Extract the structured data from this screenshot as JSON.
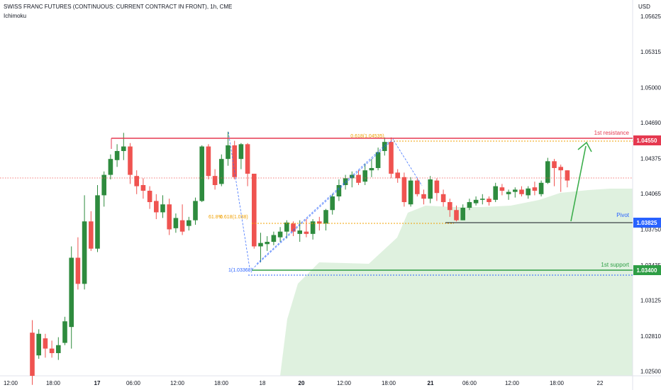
{
  "header": {
    "title": "SWISS FRANC FUTURES (CONTINUOUS: CURRENT CONTRACT IN FRONT), 1h, CME",
    "indicator": "Ichimoku",
    "currency": "USD"
  },
  "colors": {
    "bull": "#2e8b3e",
    "bear": "#ef5350",
    "resistance": "#e53950",
    "pivot": "#2962ff",
    "support": "#2e9e45",
    "fib": "#f0a000",
    "cloud": "#dff1df",
    "arrow": "#3cae4c"
  },
  "chart_data": {
    "type": "candlestick",
    "ylim": [
      1.0246,
      1.0577
    ],
    "y_ticks": [
      "1.05625",
      "1.05315",
      "1.05000",
      "1.04690",
      "1.04375",
      "1.04065",
      "1.03750",
      "1.03435",
      "1.03125",
      "1.02810",
      "1.02500"
    ],
    "x_ticks": [
      "12:00",
      "18:00",
      "17",
      "06:00",
      "12:00",
      "18:00",
      "18",
      "20",
      "12:00",
      "18:00",
      "21",
      "06:00",
      "12:00",
      "18:00",
      "22"
    ],
    "x_ticks_bold": [
      "17",
      "20",
      "21"
    ],
    "candles": [
      [
        1.0284,
        1.0295,
        1.0238,
        1.0246
      ],
      [
        1.0264,
        1.0287,
        1.0261,
        1.0283
      ],
      [
        1.0279,
        1.0283,
        1.0262,
        1.027
      ],
      [
        1.027,
        1.0277,
        1.0262,
        1.0266
      ],
      [
        1.0266,
        1.028,
        1.026,
        1.0273
      ],
      [
        1.0275,
        1.0298,
        1.0273,
        1.0294
      ],
      [
        1.0289,
        1.036,
        1.027,
        1.035
      ],
      [
        1.035,
        1.0368,
        1.0322,
        1.0327
      ],
      [
        1.0327,
        1.0405,
        1.0322,
        1.0382
      ],
      [
        1.0382,
        1.0391,
        1.0356,
        1.0358
      ],
      [
        1.0358,
        1.0414,
        1.0355,
        1.0405
      ],
      [
        1.0405,
        1.0426,
        1.0395,
        1.0423
      ],
      [
        1.0423,
        1.0441,
        1.0419,
        1.0437
      ],
      [
        1.0436,
        1.045,
        1.043,
        1.0444
      ],
      [
        1.0444,
        1.046,
        1.0436,
        1.0448
      ],
      [
        1.0448,
        1.0451,
        1.0415,
        1.0423
      ],
      [
        1.0422,
        1.0427,
        1.0406,
        1.0413
      ],
      [
        1.0414,
        1.042,
        1.0402,
        1.0409
      ],
      [
        1.0409,
        1.0413,
        1.0393,
        1.0399
      ],
      [
        1.04,
        1.0406,
        1.0384,
        1.039
      ],
      [
        1.039,
        1.0405,
        1.0385,
        1.0397
      ],
      [
        1.0397,
        1.0402,
        1.037,
        1.0375
      ],
      [
        1.0376,
        1.0389,
        1.0372,
        1.0385
      ],
      [
        1.0383,
        1.0397,
        1.037,
        1.0373
      ],
      [
        1.0378,
        1.0386,
        1.0374,
        1.0383
      ],
      [
        1.0383,
        1.0403,
        1.0379,
        1.04
      ],
      [
        1.04,
        1.0449,
        1.0399,
        1.0448
      ],
      [
        1.0448,
        1.045,
        1.0419,
        1.0422
      ],
      [
        1.0422,
        1.0428,
        1.041,
        1.0414
      ],
      [
        1.0415,
        1.0441,
        1.0413,
        1.0437
      ],
      [
        1.0437,
        1.0461,
        1.0431,
        1.0449
      ],
      [
        1.0449,
        1.0453,
        1.0419,
        1.0421
      ],
      [
        1.0437,
        1.0451,
        1.0428,
        1.045
      ],
      [
        1.045,
        1.0451,
        1.0413,
        1.0424
      ],
      [
        1.0424,
        1.0424,
        1.0358,
        1.036
      ],
      [
        1.036,
        1.0372,
        1.0346,
        1.0363
      ],
      [
        1.0362,
        1.0369,
        1.0356,
        1.0364
      ],
      [
        1.0364,
        1.0373,
        1.0361,
        1.037
      ],
      [
        1.0368,
        1.0377,
        1.0364,
        1.0373
      ],
      [
        1.0373,
        1.0383,
        1.0367,
        1.0381
      ],
      [
        1.038,
        1.0382,
        1.0369,
        1.0373
      ],
      [
        1.0371,
        1.0383,
        1.0364,
        1.0374
      ],
      [
        1.0373,
        1.0384,
        1.0368,
        1.0371
      ],
      [
        1.0371,
        1.0384,
        1.0366,
        1.0382
      ],
      [
        1.0382,
        1.0386,
        1.0374,
        1.038
      ],
      [
        1.038,
        1.0393,
        1.0374,
        1.0392
      ],
      [
        1.0392,
        1.0406,
        1.0388,
        1.0404
      ],
      [
        1.0404,
        1.0419,
        1.04,
        1.0414
      ],
      [
        1.0414,
        1.0423,
        1.041,
        1.042
      ],
      [
        1.042,
        1.0426,
        1.0412,
        1.0423
      ],
      [
        1.0423,
        1.0427,
        1.0414,
        1.0416
      ],
      [
        1.0417,
        1.0433,
        1.0414,
        1.0427
      ],
      [
        1.0427,
        1.0437,
        1.0421,
        1.0429
      ],
      [
        1.0429,
        1.0447,
        1.0427,
        1.0443
      ],
      [
        1.0444,
        1.0456,
        1.044,
        1.0452
      ],
      [
        1.0452,
        1.0456,
        1.042,
        1.0424
      ],
      [
        1.0425,
        1.0428,
        1.0416,
        1.042
      ],
      [
        1.0421,
        1.0425,
        1.0395,
        1.0399
      ],
      [
        1.0397,
        1.0421,
        1.0395,
        1.0418
      ],
      [
        1.0418,
        1.042,
        1.0404,
        1.0406
      ],
      [
        1.0406,
        1.041,
        1.0397,
        1.0402
      ],
      [
        1.0402,
        1.0422,
        1.0398,
        1.0419
      ],
      [
        1.0418,
        1.042,
        1.04,
        1.0407
      ],
      [
        1.0406,
        1.041,
        1.0395,
        1.0399
      ],
      [
        1.0399,
        1.0402,
        1.0386,
        1.0392
      ],
      [
        1.0392,
        1.0396,
        1.0382,
        1.0383
      ],
      [
        1.0383,
        1.0397,
        1.0383,
        1.0394
      ],
      [
        1.0394,
        1.0402,
        1.0392,
        1.0399
      ],
      [
        1.0398,
        1.0404,
        1.0396,
        1.0401
      ],
      [
        1.0401,
        1.0406,
        1.0397,
        1.0402
      ],
      [
        1.0402,
        1.0404,
        1.0396,
        1.0399
      ],
      [
        1.0401,
        1.0416,
        1.0399,
        1.0413
      ],
      [
        1.0412,
        1.0415,
        1.0405,
        1.0409
      ],
      [
        1.0406,
        1.041,
        1.0401,
        1.0408
      ],
      [
        1.0408,
        1.0412,
        1.0403,
        1.041
      ],
      [
        1.041,
        1.0413,
        1.0404,
        1.0406
      ],
      [
        1.0405,
        1.0413,
        1.0402,
        1.0411
      ],
      [
        1.0412,
        1.0417,
        1.0405,
        1.0409
      ],
      [
        1.0406,
        1.0418,
        1.0404,
        1.0416
      ],
      [
        1.0416,
        1.0438,
        1.0415,
        1.0435
      ],
      [
        1.0435,
        1.0437,
        1.0413,
        1.0429
      ],
      [
        1.043,
        1.0432,
        1.0408,
        1.0427
      ],
      [
        1.0427,
        1.0427,
        1.0412,
        1.0418
      ]
    ],
    "levels": [
      {
        "name": "1st resistance",
        "price": 1.0455,
        "label": "1.04550"
      },
      {
        "name": "Pivot",
        "price": 1.03825,
        "label": "1.03825"
      },
      {
        "name": "1st support",
        "price": 1.034,
        "label": "1.03400"
      }
    ],
    "fib_labels": [
      "0.618(1.04535)",
      "61.8%",
      "0.618(1.038)",
      "1(1.03368)"
    ],
    "annotations": [
      "1st resistance",
      "Pivot",
      "1st support"
    ]
  }
}
